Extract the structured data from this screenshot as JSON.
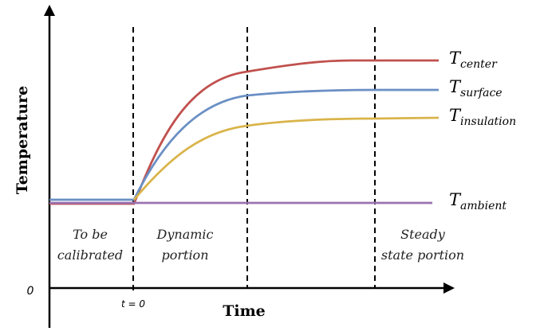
{
  "y_axis_title": "Temperature",
  "x_axis_title": "Time",
  "origin_label": "0",
  "t0_label": "t = 0",
  "regions": {
    "calibrated": [
      "To be",
      "calibrated"
    ],
    "dynamic": [
      "Dynamic",
      "portion"
    ],
    "steady": [
      "Steady",
      "state portion"
    ]
  },
  "curves": {
    "center": {
      "main": "T",
      "sub": "center",
      "color": "#c0504d"
    },
    "surface": {
      "main": "T",
      "sub": "surface",
      "color": "#6a8fc4"
    },
    "insulation": {
      "main": "T",
      "sub": "insulation",
      "color": "#d9b44a"
    },
    "ambient": {
      "main": "T",
      "sub": "ambient",
      "color": "#9b72b0"
    }
  },
  "colors": {
    "axis": "#000000",
    "divider": "#000000"
  }
}
